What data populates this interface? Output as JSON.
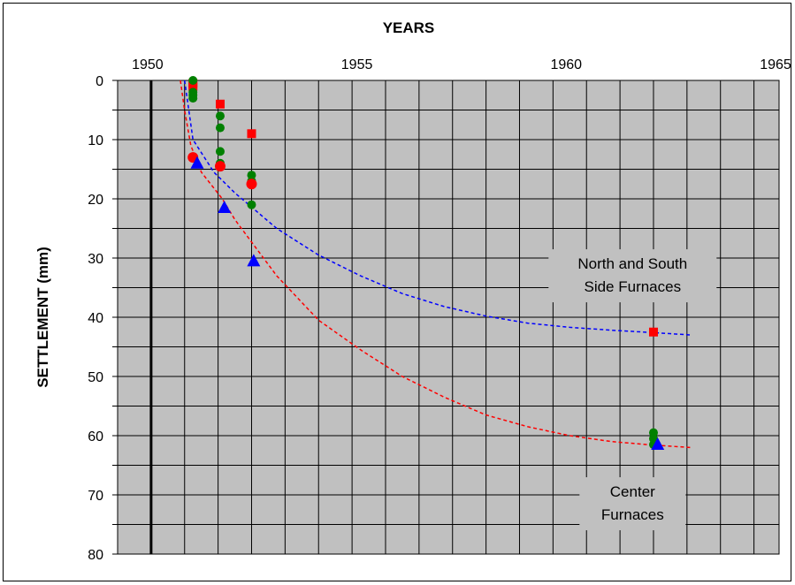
{
  "chart_data": {
    "type": "scatter",
    "title": "YEARS",
    "xlabel": "YEARS",
    "ylabel": "SETTLEMENT  (mm)",
    "xlim": [
      1949.2,
      1965
    ],
    "ylim": [
      0,
      80
    ],
    "y_inverted": true,
    "x_ticks": [
      1950,
      1955,
      1960,
      1965
    ],
    "y_ticks": [
      0,
      10,
      20,
      30,
      40,
      50,
      60,
      70,
      80
    ],
    "grid": true,
    "colors": {
      "plot_bg": "#c0c0c0",
      "grid_minor": "#000000",
      "red": "#ff0000",
      "green": "#008000",
      "blue": "#0000ff"
    },
    "series": [
      {
        "marker": "square",
        "color": "#ff0000",
        "points": [
          [
            1951.0,
            0.5
          ],
          [
            1951.0,
            1.0
          ],
          [
            1951.65,
            4.0
          ],
          [
            1952.4,
            9.0
          ],
          [
            1962.0,
            42.5
          ]
        ]
      },
      {
        "marker": "circle",
        "color": "#008000",
        "points": [
          [
            1951.0,
            0.0
          ],
          [
            1951.0,
            2.0
          ],
          [
            1951.0,
            2.5
          ],
          [
            1951.0,
            3.0
          ],
          [
            1951.65,
            6.0
          ],
          [
            1951.65,
            8.0
          ],
          [
            1951.65,
            12.0
          ],
          [
            1951.65,
            14.0
          ],
          [
            1952.4,
            16.0
          ],
          [
            1952.4,
            17.0
          ],
          [
            1952.4,
            21.0
          ],
          [
            1962.0,
            59.5
          ],
          [
            1962.0,
            60.5
          ],
          [
            1962.0,
            61.5
          ]
        ]
      },
      {
        "marker": "circle",
        "color": "#ff0000",
        "points": [
          [
            1951.0,
            13.0
          ],
          [
            1951.65,
            14.5
          ],
          [
            1952.4,
            17.5
          ]
        ]
      },
      {
        "marker": "triangle",
        "color": "#0000ff",
        "points": [
          [
            1951.1,
            14.0
          ],
          [
            1951.75,
            21.5
          ],
          [
            1952.45,
            30.5
          ],
          [
            1962.1,
            61.5
          ]
        ]
      }
    ],
    "curves": [
      {
        "style": "dashed",
        "color": "#0000ff",
        "points": [
          [
            1950.8,
            0.0
          ],
          [
            1950.9,
            5.0
          ],
          [
            1951.0,
            10.0
          ],
          [
            1951.5,
            15.5
          ],
          [
            1952.0,
            19.0
          ],
          [
            1953.0,
            25.0
          ],
          [
            1954.0,
            29.5
          ],
          [
            1955.0,
            33.0
          ],
          [
            1956.0,
            36.0
          ],
          [
            1957.0,
            38.2
          ],
          [
            1958.0,
            39.8
          ],
          [
            1959.0,
            41.0
          ],
          [
            1960.0,
            41.7
          ],
          [
            1961.0,
            42.2
          ],
          [
            1962.0,
            42.6
          ],
          [
            1962.9,
            43.0
          ]
        ]
      },
      {
        "style": "dashed",
        "color": "#ff0000",
        "points": [
          [
            1950.7,
            0.0
          ],
          [
            1950.8,
            5.0
          ],
          [
            1950.95,
            11.0
          ],
          [
            1951.2,
            15.5
          ],
          [
            1951.7,
            20.0
          ],
          [
            1952.0,
            23.5
          ],
          [
            1953.0,
            33.0
          ],
          [
            1954.0,
            40.5
          ],
          [
            1955.0,
            45.5
          ],
          [
            1956.0,
            50.0
          ],
          [
            1957.0,
            53.5
          ],
          [
            1958.0,
            56.5
          ],
          [
            1959.0,
            58.5
          ],
          [
            1960.0,
            60.0
          ],
          [
            1961.0,
            61.0
          ],
          [
            1962.0,
            61.6
          ],
          [
            1962.9,
            62.0
          ]
        ]
      }
    ],
    "annotations": [
      {
        "lines": [
          "North and South",
          "Side Furnaces"
        ],
        "x": 1961.5,
        "y": 33.0
      },
      {
        "lines": [
          "Center",
          "Furnaces"
        ],
        "x": 1961.5,
        "y": 71.5
      }
    ]
  }
}
